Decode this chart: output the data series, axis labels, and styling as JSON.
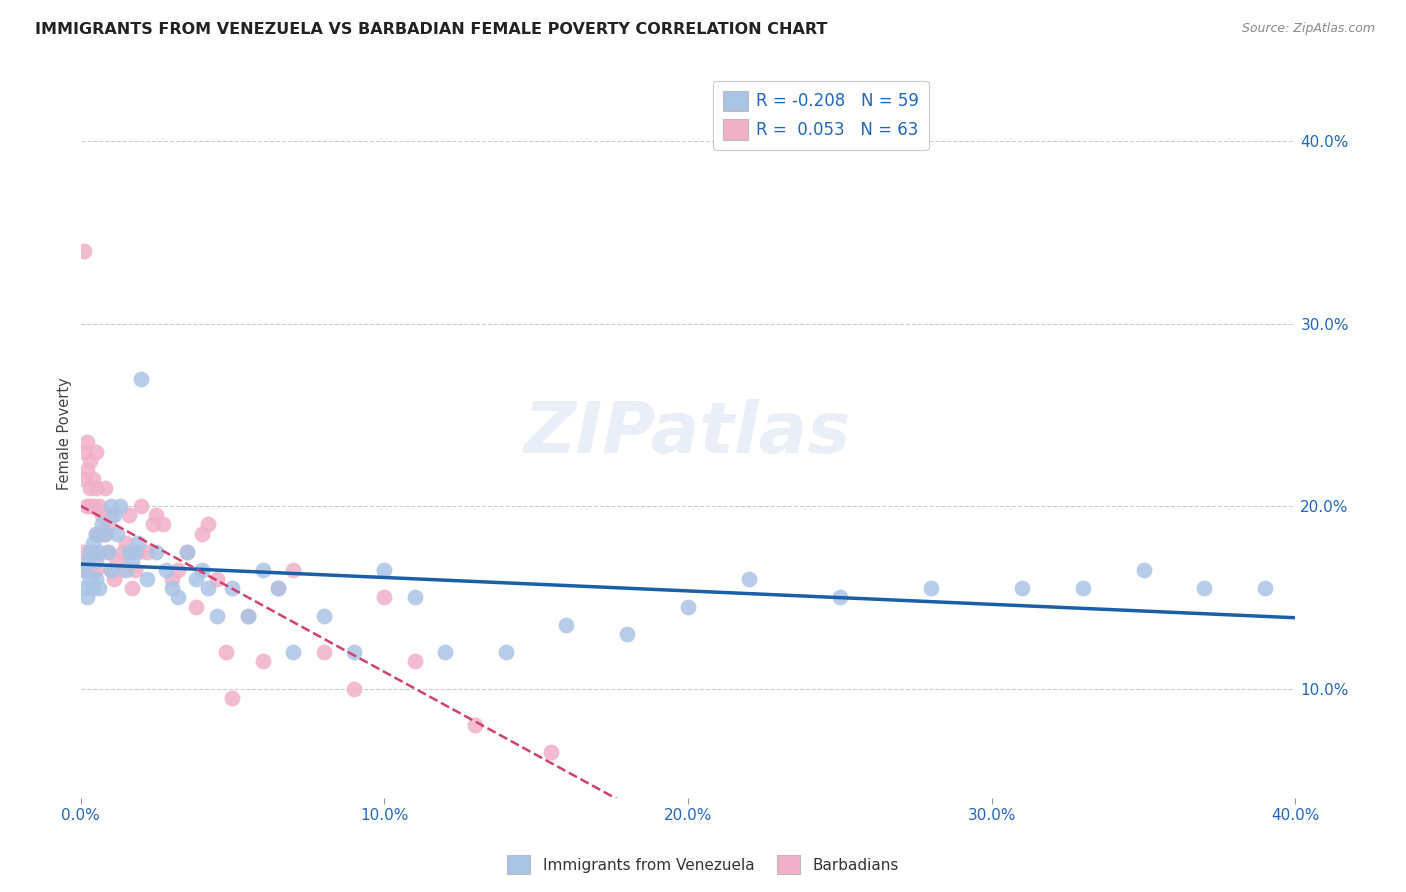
{
  "title": "IMMIGRANTS FROM VENEZUELA VS BARBADIAN FEMALE POVERTY CORRELATION CHART",
  "source": "Source: ZipAtlas.com",
  "ylabel": "Female Poverty",
  "y_ticks": [
    0.1,
    0.2,
    0.3,
    0.4
  ],
  "y_tick_labels": [
    "10.0%",
    "20.0%",
    "30.0%",
    "40.0%"
  ],
  "xlim": [
    0.0,
    0.4
  ],
  "ylim": [
    0.04,
    0.44
  ],
  "legend_labels": [
    "Immigrants from Venezuela",
    "Barbadians"
  ],
  "r_venezuela": -0.208,
  "n_venezuela": 59,
  "r_barbadians": 0.053,
  "n_barbadians": 63,
  "blue_color": "#aac4e4",
  "pink_color": "#f0b0c8",
  "blue_line_color": "#1a5faa",
  "pink_line_color": "#d04070",
  "venezuela_x": [
    0.001,
    0.001,
    0.002,
    0.002,
    0.003,
    0.003,
    0.004,
    0.004,
    0.005,
    0.005,
    0.005,
    0.006,
    0.006,
    0.007,
    0.008,
    0.009,
    0.01,
    0.01,
    0.011,
    0.012,
    0.013,
    0.015,
    0.016,
    0.017,
    0.018,
    0.019,
    0.02,
    0.022,
    0.025,
    0.028,
    0.03,
    0.032,
    0.035,
    0.038,
    0.04,
    0.042,
    0.045,
    0.05,
    0.055,
    0.06,
    0.065,
    0.07,
    0.08,
    0.09,
    0.1,
    0.11,
    0.12,
    0.14,
    0.16,
    0.18,
    0.2,
    0.22,
    0.25,
    0.28,
    0.31,
    0.33,
    0.35,
    0.37,
    0.39
  ],
  "venezuela_y": [
    0.165,
    0.155,
    0.17,
    0.15,
    0.175,
    0.16,
    0.18,
    0.155,
    0.185,
    0.17,
    0.16,
    0.175,
    0.155,
    0.19,
    0.185,
    0.175,
    0.2,
    0.165,
    0.195,
    0.185,
    0.2,
    0.165,
    0.175,
    0.17,
    0.175,
    0.18,
    0.27,
    0.16,
    0.175,
    0.165,
    0.155,
    0.15,
    0.175,
    0.16,
    0.165,
    0.155,
    0.14,
    0.155,
    0.14,
    0.165,
    0.155,
    0.12,
    0.14,
    0.12,
    0.165,
    0.15,
    0.12,
    0.12,
    0.135,
    0.13,
    0.145,
    0.16,
    0.15,
    0.155,
    0.155,
    0.155,
    0.165,
    0.155,
    0.155
  ],
  "barbadians_x": [
    0.001,
    0.001,
    0.001,
    0.001,
    0.001,
    0.002,
    0.002,
    0.002,
    0.002,
    0.003,
    0.003,
    0.003,
    0.003,
    0.004,
    0.004,
    0.004,
    0.005,
    0.005,
    0.005,
    0.005,
    0.006,
    0.006,
    0.007,
    0.007,
    0.008,
    0.008,
    0.009,
    0.009,
    0.01,
    0.01,
    0.011,
    0.012,
    0.013,
    0.014,
    0.015,
    0.016,
    0.017,
    0.018,
    0.019,
    0.02,
    0.022,
    0.024,
    0.025,
    0.027,
    0.03,
    0.032,
    0.035,
    0.038,
    0.04,
    0.042,
    0.045,
    0.048,
    0.05,
    0.055,
    0.06,
    0.065,
    0.07,
    0.08,
    0.09,
    0.1,
    0.11,
    0.13,
    0.155
  ],
  "barbadians_y": [
    0.34,
    0.23,
    0.215,
    0.175,
    0.165,
    0.235,
    0.22,
    0.2,
    0.165,
    0.225,
    0.21,
    0.2,
    0.165,
    0.215,
    0.2,
    0.175,
    0.23,
    0.21,
    0.185,
    0.165,
    0.2,
    0.185,
    0.195,
    0.185,
    0.21,
    0.185,
    0.19,
    0.175,
    0.195,
    0.165,
    0.16,
    0.17,
    0.165,
    0.175,
    0.18,
    0.195,
    0.155,
    0.165,
    0.175,
    0.2,
    0.175,
    0.19,
    0.195,
    0.19,
    0.16,
    0.165,
    0.175,
    0.145,
    0.185,
    0.19,
    0.16,
    0.12,
    0.095,
    0.14,
    0.115,
    0.155,
    0.165,
    0.12,
    0.1,
    0.15,
    0.115,
    0.08,
    0.065
  ]
}
